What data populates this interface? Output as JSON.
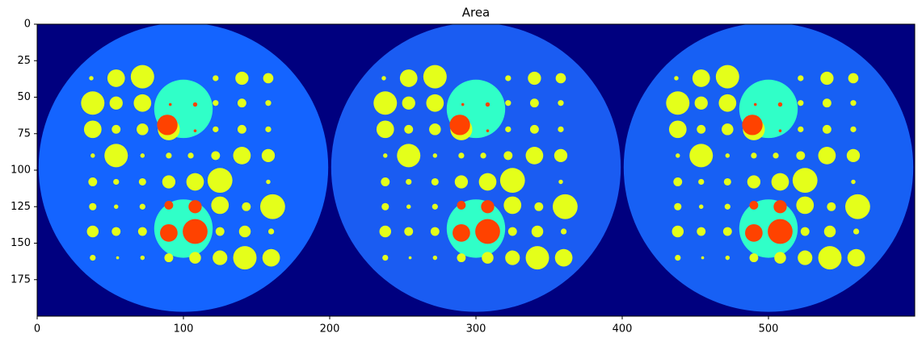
{
  "chart_data": {
    "type": "image",
    "title": "Area",
    "xlim": [
      0,
      600
    ],
    "ylim": [
      200,
      0
    ],
    "xticks": [
      0,
      100,
      200,
      300,
      400,
      500
    ],
    "yticks": [
      0,
      25,
      50,
      75,
      100,
      125,
      150,
      175
    ]
  }
}
